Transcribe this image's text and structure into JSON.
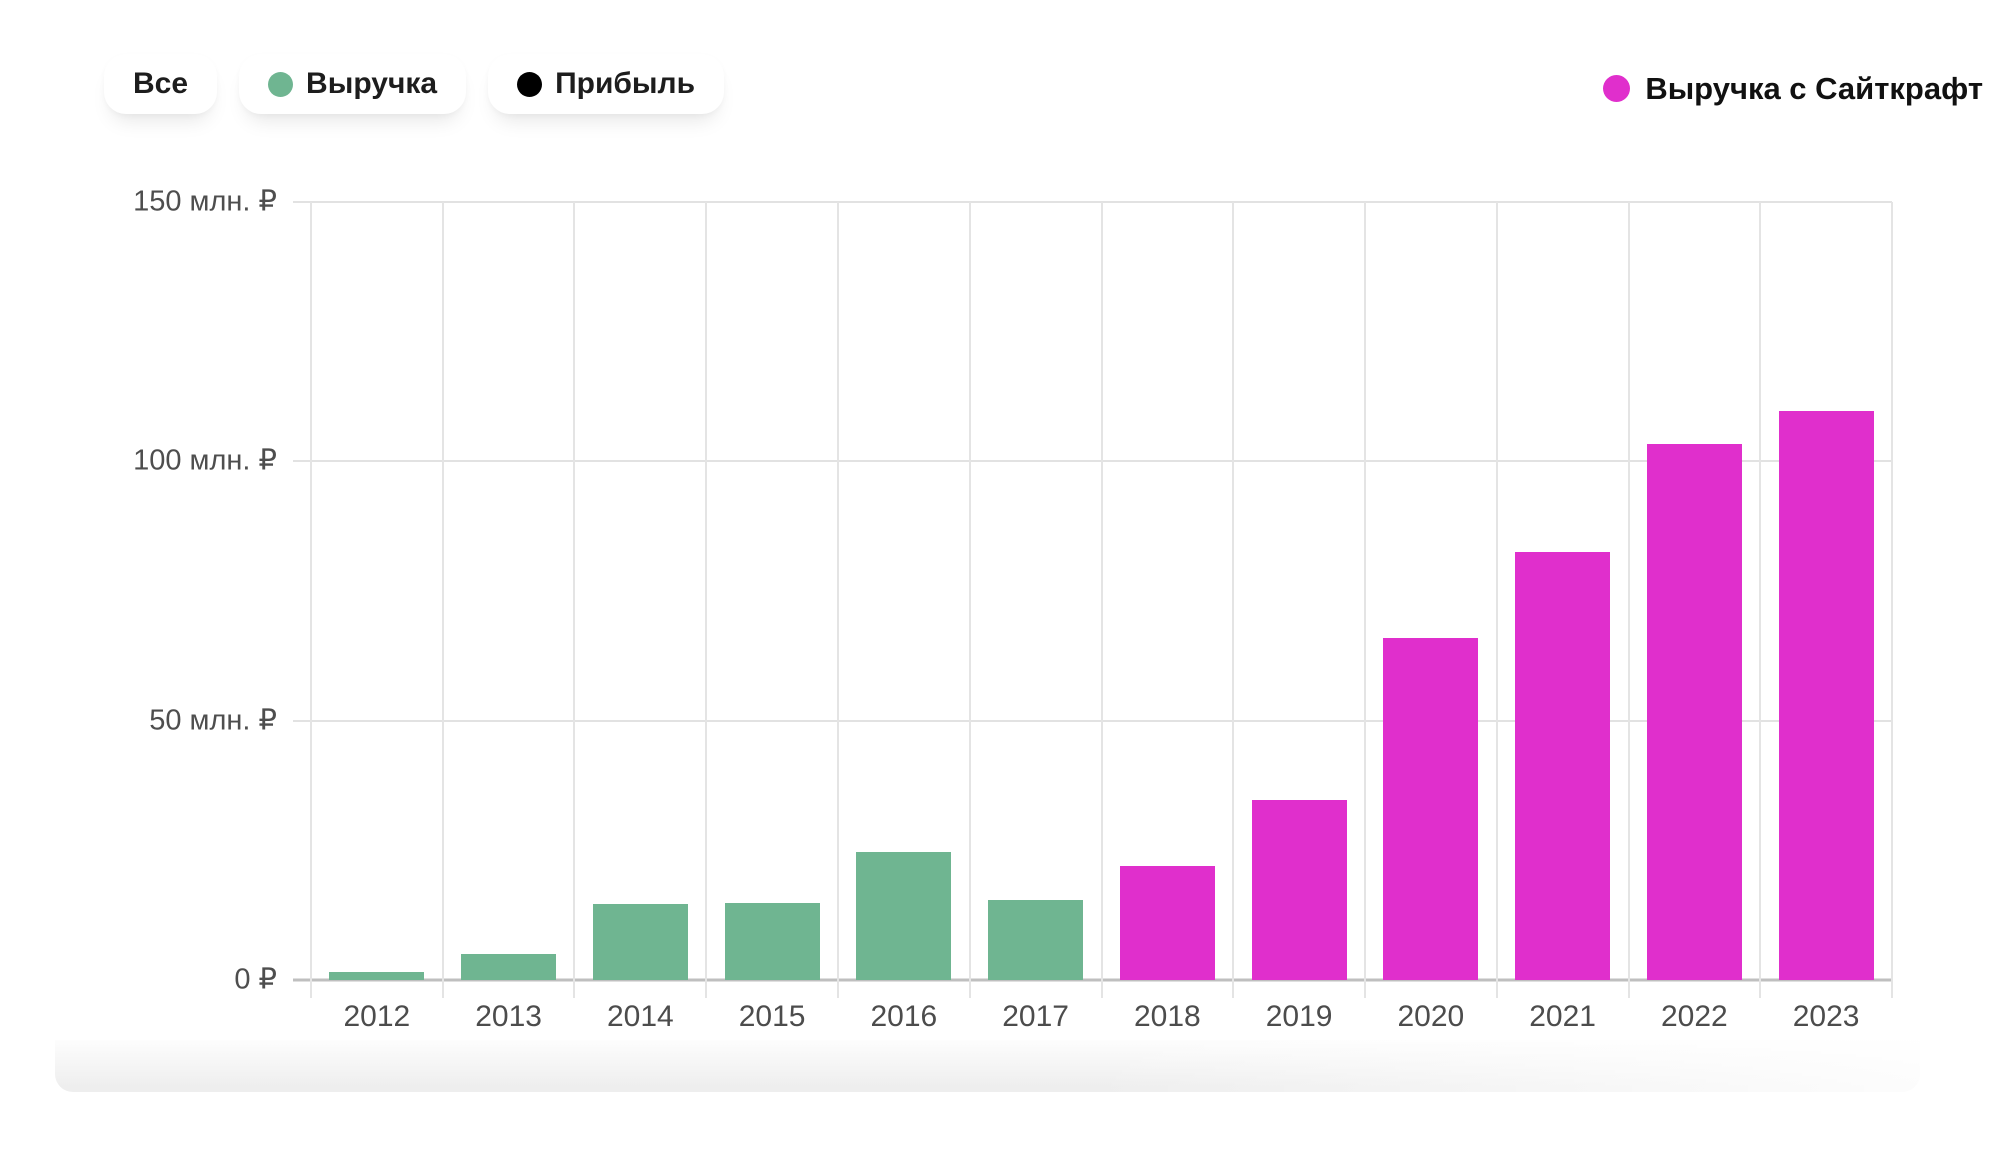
{
  "filters": {
    "items": [
      {
        "label": "Все",
        "dot_color": null
      },
      {
        "label": "Выручка",
        "dot_color": "#6FB591"
      },
      {
        "label": "Прибыль",
        "dot_color": "#000000"
      }
    ]
  },
  "legend": {
    "label": "Выручка с Сайткрафт",
    "dot_color": "#E02FCC"
  },
  "colors": {
    "revenue_green": "#6FB591",
    "saitkraft_magenta": "#E02FCC",
    "gridline": "#e2e2e2",
    "axis_text": "#4e4e4e"
  },
  "chart_data": {
    "type": "bar",
    "title": "",
    "xlabel": "",
    "ylabel": "млн. ₽",
    "ylim": [
      0,
      150
    ],
    "grid": true,
    "legend_position": "top-right",
    "categories": [
      "2012",
      "2013",
      "2014",
      "2015",
      "2016",
      "2017",
      "2018",
      "2019",
      "2020",
      "2021",
      "2022",
      "2023"
    ],
    "series": [
      {
        "name": "Выручка",
        "color": "#6FB591",
        "values": [
          1.5,
          5,
          14.7,
          14.9,
          24.7,
          15.4,
          null,
          null,
          null,
          null,
          null,
          null
        ]
      },
      {
        "name": "Выручка с Сайткрафт",
        "color": "#E02FCC",
        "values": [
          null,
          null,
          null,
          null,
          null,
          null,
          22,
          34.7,
          66,
          82.6,
          103.3,
          109.7
        ]
      }
    ],
    "y_ticks": [
      {
        "value": 0,
        "label": "0 ₽"
      },
      {
        "value": 50,
        "label": "50 млн. ₽"
      },
      {
        "value": 100,
        "label": "100 млн. ₽"
      },
      {
        "value": 150,
        "label": "150 млн. ₽"
      }
    ]
  }
}
